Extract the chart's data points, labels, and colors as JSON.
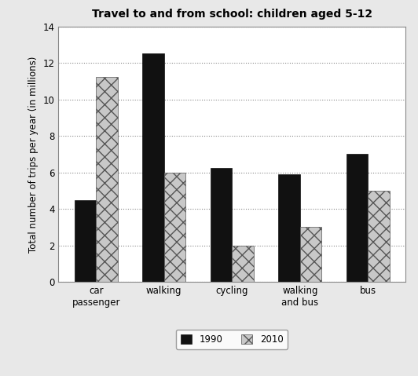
{
  "title": "Travel to and from school: children aged 5-12",
  "ylabel": "Total number of trips per year (in millions)",
  "categories": [
    "car\npassenger",
    "walking",
    "cycling",
    "walking\nand bus",
    "bus"
  ],
  "values_1990": [
    4.5,
    12.5,
    6.25,
    5.9,
    7.0
  ],
  "values_2010": [
    11.25,
    6.0,
    2.0,
    3.0,
    5.0
  ],
  "color_1990": "#111111",
  "color_2010": "#c8c8c8",
  "hatch_2010": "xx",
  "ylim": [
    0,
    14
  ],
  "yticks": [
    0,
    2,
    4,
    6,
    8,
    10,
    12,
    14
  ],
  "bar_width": 0.32,
  "legend_labels": [
    "1990",
    "2010"
  ],
  "background_color": "#e8e8e8",
  "plot_bg_color": "#ffffff",
  "grid_color": "#888888",
  "title_fontsize": 10,
  "label_fontsize": 8.5,
  "tick_fontsize": 8.5
}
